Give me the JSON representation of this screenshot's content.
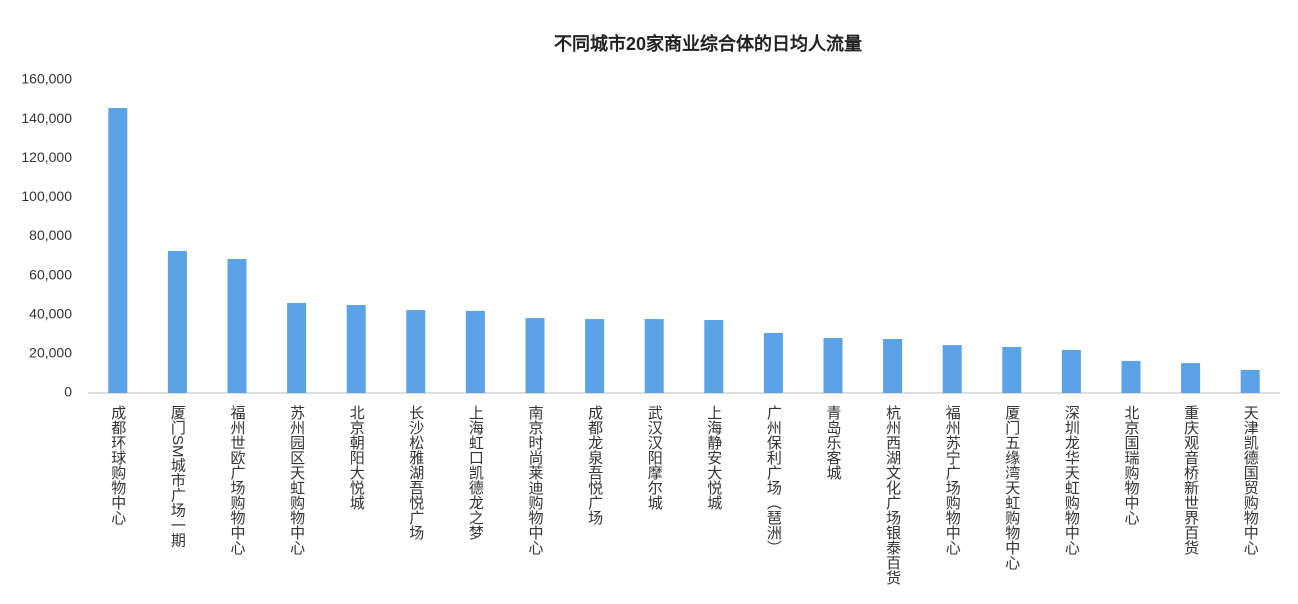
{
  "chart_data": {
    "type": "bar",
    "title": "不同城市20家商业综合体的日均人流量",
    "categories": [
      "成都环球购物中心",
      "厦门SM城市广场一期",
      "福州世欧广场购物中心",
      "苏州园区天虹购物中心",
      "北京朝阳大悦城",
      "长沙松雅湖吾悦广场",
      "上海虹口凯德龙之梦",
      "南京时尚莱迪购物中心",
      "成都龙泉吾悦广场",
      "武汉汉阳摩尔城",
      "上海静安大悦城",
      "广州保利广场（琶洲）",
      "青岛乐客城",
      "杭州西湖文化广场银泰百货",
      "福州苏宁广场购物中心",
      "厦门五缘湾天虹购物中心",
      "深圳龙华天虹购物中心",
      "北京国瑞购物中心",
      "重庆观音桥新世界百货",
      "天津凯德国贸购物中心"
    ],
    "values": [
      145700,
      72600,
      68500,
      46000,
      45000,
      42400,
      42000,
      38300,
      37800,
      37800,
      37300,
      30700,
      28100,
      27600,
      24500,
      23500,
      22000,
      16400,
      15300,
      11800
    ],
    "color": "#5ba3e6",
    "ylim": [
      0,
      160000
    ],
    "yticks": [
      0,
      {
        "value": 20000,
        "label": "20,000"
      },
      {
        "value": 40000,
        "label": "40,000"
      },
      {
        "value": 60000,
        "label": "60,000"
      },
      {
        "value": 80000,
        "label": "80,000"
      },
      {
        "value": 100000,
        "label": "100,000"
      },
      {
        "value": 120000,
        "label": "120,000"
      },
      {
        "value": 140000,
        "label": "140,000"
      },
      {
        "value": 160000,
        "label": "160,000"
      }
    ],
    "grid": false
  }
}
